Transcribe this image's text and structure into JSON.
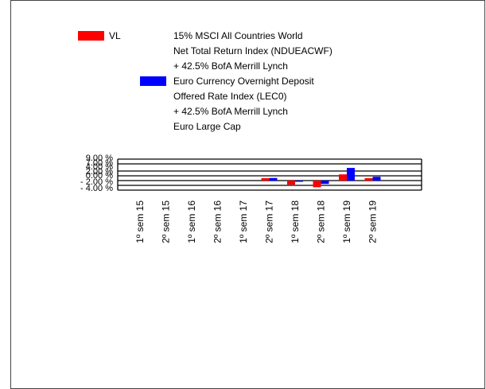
{
  "colors": {
    "vl": "#ff0000",
    "benchmark": "#0000ff",
    "axis": "#000000",
    "background": "#ffffff"
  },
  "legend": {
    "vl_label": "VL",
    "benchmark_lines": [
      "15% MSCI All Countries World",
      "Net Total Return Index (NDUEACWF)",
      "+ 42.5% BofA Merrill Lynch",
      "Euro Currency Overnight Deposit",
      "Offered Rate Index (LEC0)",
      "+ 42.5% BofA Merrill Lynch",
      "Euro Large Cap"
    ]
  },
  "chart_data": {
    "type": "bar",
    "title": "",
    "xlabel": "",
    "ylabel": "",
    "ylim": [
      -4,
      9
    ],
    "y_tick_labels": [
      "9.00 %",
      "7.00 %",
      "4.00 %",
      "2.00 %",
      "0.00 %",
      "- 2.00 %",
      "- 4.00 %"
    ],
    "categories": [
      "1º sem 15",
      "2º sem 15",
      "1º sem 16",
      "2º sem 16",
      "1º sem 17",
      "2º sem 17",
      "1º sem 18",
      "2º sem 18",
      "1º sem 19",
      "2º sem 19"
    ],
    "series": [
      {
        "name": "VL",
        "color": "#ff0000",
        "values": [
          null,
          null,
          null,
          null,
          null,
          1.0,
          -1.7,
          -2.8,
          2.6,
          1.0
        ]
      },
      {
        "name": "benchmark",
        "color": "#0000ff",
        "values": [
          null,
          null,
          null,
          null,
          null,
          1.1,
          -0.5,
          -1.4,
          5.3,
          1.6
        ]
      }
    ],
    "grid": true,
    "legend_position": "top"
  }
}
